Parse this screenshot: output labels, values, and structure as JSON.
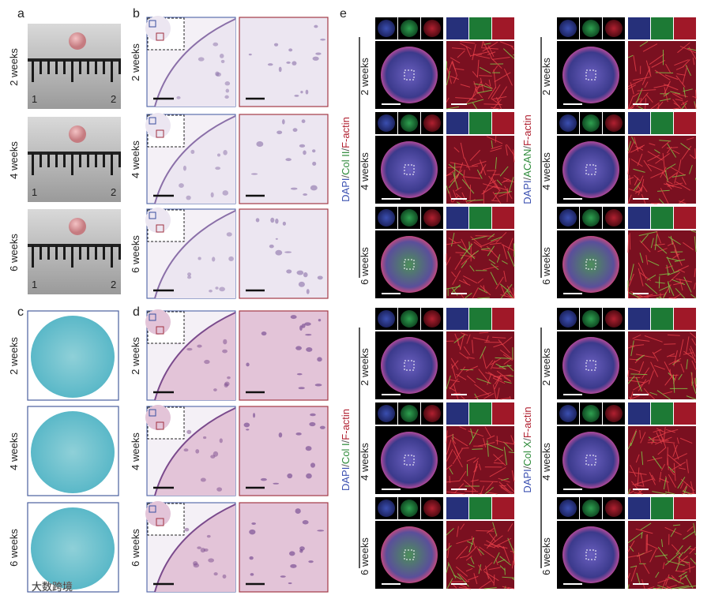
{
  "panel_a": {
    "letter": "a",
    "rows": [
      {
        "label": "2 weeks",
        "ruler": [
          "1",
          "2"
        ]
      },
      {
        "label": "4 weeks",
        "ruler": [
          "1",
          "2"
        ]
      },
      {
        "label": "6 weeks",
        "ruler": [
          "1",
          "2"
        ]
      }
    ]
  },
  "panel_b": {
    "letter": "b",
    "rows": [
      "2 weeks",
      "4 weeks",
      "6 weeks"
    ]
  },
  "panel_c": {
    "letter": "c",
    "rows": [
      "2 weeks",
      "4 weeks",
      "6 weeks"
    ]
  },
  "panel_d": {
    "letter": "d",
    "rows": [
      "2 weeks",
      "4 weeks",
      "6 weeks"
    ]
  },
  "panel_e": {
    "letter": "e",
    "groups": [
      {
        "stain": [
          "DAPI",
          "/",
          "Col II",
          "/",
          "F-actin"
        ],
        "rows": [
          "2 weeks",
          "4 weeks",
          "6 weeks"
        ]
      },
      {
        "stain": [
          "DAPI",
          "/",
          "ACAN",
          "/",
          "F-actin"
        ],
        "rows": [
          "2 weeks",
          "4 weeks",
          "6 weeks"
        ]
      },
      {
        "stain": [
          "DAPI",
          "/",
          "Col I",
          "/",
          "F-actin"
        ],
        "rows": [
          "2 weeks",
          "4 weeks",
          "6 weeks"
        ]
      },
      {
        "stain": [
          "DAPI",
          "/",
          "Col X",
          "/",
          "F-actin"
        ],
        "rows": [
          "2 weeks",
          "4 weeks",
          "6 weeks"
        ]
      }
    ]
  },
  "watermark": "大数跨境"
}
